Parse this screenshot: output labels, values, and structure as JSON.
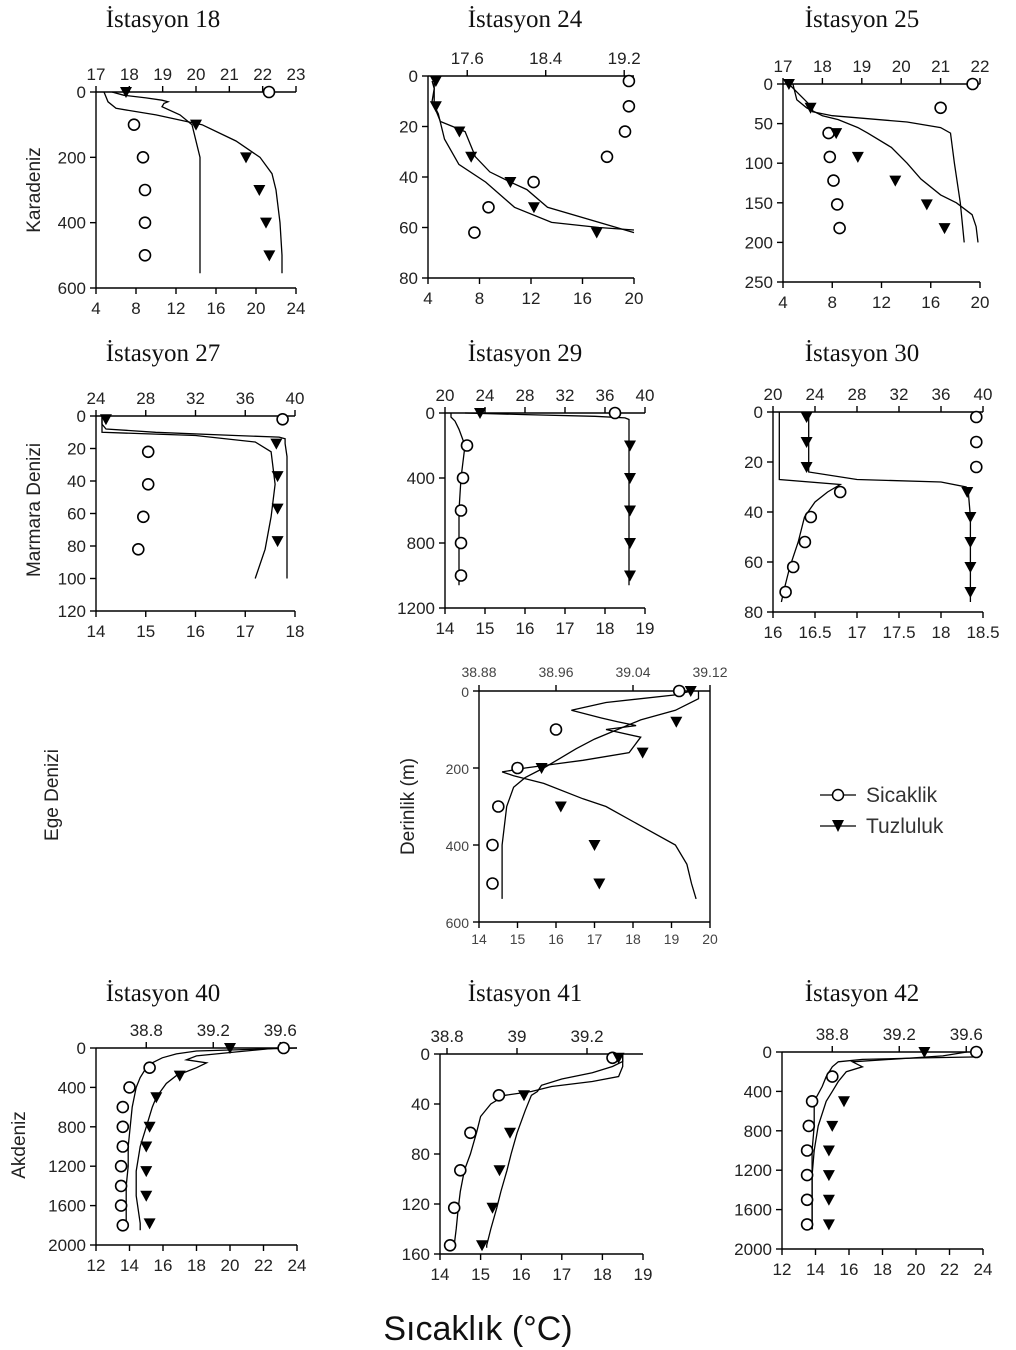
{
  "figure": {
    "row_labels": [
      "Karadeniz",
      "Marmara Denizi",
      "Ege Denizi",
      "Akdeniz"
    ],
    "x_axis_title": "Sıcaklık (°C)",
    "legend": {
      "temperature": "Sicaklik",
      "salinity": "Tuzluluk"
    },
    "colors": {
      "line": "#000000",
      "background": "#ffffff"
    }
  },
  "chart_data": [
    {
      "type": "line",
      "title": "İstasyon 18",
      "row_label": "Karadeniz",
      "xlim_bottom": [
        4,
        24
      ],
      "xticks_bottom": [
        "4",
        "8",
        "12",
        "16",
        "20",
        "24"
      ],
      "xlim_top": [
        17,
        23
      ],
      "xticks_top": [
        "17",
        "18",
        "19",
        "20",
        "21",
        "22",
        "23"
      ],
      "ylim": [
        0,
        600
      ],
      "yticks": [
        "0",
        "200",
        "400",
        "600"
      ],
      "series": [
        {
          "name": "Sicaklik",
          "depth": [
            0,
            100,
            200,
            300,
            400,
            500
          ],
          "values": [
            21.3,
            7.8,
            8.7,
            8.9,
            8.9,
            8.9
          ]
        },
        {
          "name": "Tuzluluk",
          "depth": [
            0,
            100,
            200,
            300,
            400,
            500
          ],
          "values": [
            17.9,
            20.0,
            21.5,
            21.9,
            22.1,
            22.2
          ]
        }
      ]
    },
    {
      "type": "line",
      "title": "İstasyon 24",
      "xlim_bottom": [
        4,
        20
      ],
      "xticks_bottom": [
        "4",
        "8",
        "12",
        "16",
        "20"
      ],
      "xlim_top": [
        17.2,
        19.3
      ],
      "xticks_top": [
        "17.6",
        "18.4",
        "19.2"
      ],
      "ylim": [
        0,
        80
      ],
      "yticks": [
        "0",
        "20",
        "40",
        "60",
        "80"
      ],
      "series": [
        {
          "name": "Sicaklik",
          "depth": [
            2,
            12,
            22,
            32,
            42,
            52,
            62
          ],
          "values": [
            19.6,
            19.6,
            19.3,
            17.9,
            12.2,
            8.7,
            7.6
          ]
        },
        {
          "name": "Tuzluluk",
          "depth": [
            2,
            12,
            22,
            32,
            42,
            52,
            62
          ],
          "values": [
            17.28,
            17.28,
            17.52,
            17.64,
            18.04,
            18.28,
            18.92
          ]
        }
      ]
    },
    {
      "type": "line",
      "title": "İstasyon 25",
      "xlim_bottom": [
        4,
        20
      ],
      "xticks_bottom": [
        "4",
        "8",
        "12",
        "16",
        "20"
      ],
      "xlim_top": [
        17,
        22
      ],
      "xticks_top": [
        "17",
        "18",
        "19",
        "20",
        "21",
        "22"
      ],
      "ylim": [
        0,
        250
      ],
      "yticks": [
        "0",
        "50",
        "100",
        "150",
        "200",
        "250"
      ],
      "series": [
        {
          "name": "Sicaklik",
          "depth": [
            0,
            30,
            62,
            92,
            122,
            152,
            182
          ],
          "values": [
            19.4,
            16.8,
            7.7,
            7.8,
            8.1,
            8.4,
            8.6
          ]
        },
        {
          "name": "Tuzluluk",
          "depth": [
            0,
            30,
            62,
            92,
            122,
            152,
            182
          ],
          "values": [
            17.15,
            17.7,
            18.35,
            18.9,
            19.85,
            20.65,
            21.1
          ]
        }
      ]
    },
    {
      "type": "line",
      "title": "İstasyon 27",
      "row_label": "Marmara Denizi",
      "xlim_bottom": [
        14,
        18
      ],
      "xticks_bottom": [
        "14",
        "15",
        "16",
        "17",
        "18"
      ],
      "xlim_top": [
        24,
        40
      ],
      "xticks_top": [
        "24",
        "28",
        "32",
        "36",
        "40"
      ],
      "ylim": [
        0,
        120
      ],
      "yticks": [
        "0",
        "20",
        "40",
        "60",
        "80",
        "100",
        "120"
      ],
      "series": [
        {
          "name": "Sicaklik",
          "depth": [
            2,
            22,
            42,
            62,
            82
          ],
          "values": [
            17.75,
            15.05,
            15.05,
            14.95,
            14.85
          ]
        },
        {
          "name": "Tuzluluk",
          "depth": [
            2,
            17,
            37,
            57,
            77
          ],
          "values": [
            24.8,
            38.5,
            38.6,
            38.6,
            38.6
          ]
        }
      ]
    },
    {
      "type": "line",
      "title": "İstasyon 29",
      "xlim_bottom": [
        14,
        19
      ],
      "xticks_bottom": [
        "14",
        "15",
        "16",
        "17",
        "18",
        "19"
      ],
      "xlim_top": [
        20,
        40
      ],
      "xticks_top": [
        "20",
        "24",
        "28",
        "32",
        "36",
        "40"
      ],
      "ylim": [
        0,
        1200
      ],
      "yticks": [
        "0",
        "400",
        "800",
        "1200"
      ],
      "series": [
        {
          "name": "Sicaklik",
          "depth": [
            0,
            200,
            400,
            600,
            800,
            1000
          ],
          "values": [
            18.25,
            14.55,
            14.45,
            14.4,
            14.4,
            14.4
          ]
        },
        {
          "name": "Tuzluluk",
          "depth": [
            0,
            200,
            400,
            600,
            800,
            1000
          ],
          "values": [
            23.5,
            38.5,
            38.5,
            38.5,
            38.5,
            38.5
          ]
        }
      ]
    },
    {
      "type": "line",
      "title": "İstasyon 30",
      "xlim_bottom": [
        16,
        18.5
      ],
      "xticks_bottom": [
        "16",
        "16.5",
        "17",
        "17.5",
        "18",
        "18.5"
      ],
      "xlim_top": [
        20,
        40
      ],
      "xticks_top": [
        "20",
        "24",
        "28",
        "32",
        "36",
        "40"
      ],
      "ylim": [
        0,
        80
      ],
      "yticks": [
        "0",
        "20",
        "40",
        "60",
        "80"
      ],
      "series": [
        {
          "name": "Sicaklik",
          "depth": [
            2,
            12,
            22,
            32,
            42,
            52,
            62,
            72
          ],
          "values": [
            18.42,
            18.42,
            18.42,
            16.8,
            16.45,
            16.38,
            16.24,
            16.15
          ]
        },
        {
          "name": "Tuzluluk",
          "depth": [
            2,
            12,
            22,
            32,
            42,
            52,
            62,
            72
          ],
          "values": [
            23.2,
            23.2,
            23.2,
            38.5,
            38.8,
            38.8,
            38.8,
            38.8
          ]
        }
      ]
    },
    {
      "type": "line",
      "title": "",
      "row_label": "Ege Denizi",
      "ylabel": "Derinlik (m)",
      "xlim_bottom": [
        14,
        20
      ],
      "xticks_bottom": [
        "14",
        "15",
        "16",
        "17",
        "18",
        "19",
        "20"
      ],
      "xlim_top": [
        38.88,
        39.12
      ],
      "xticks_top": [
        "38.88",
        "38.96",
        "39.04",
        "39.12"
      ],
      "ylim": [
        0,
        600
      ],
      "yticks": [
        "0",
        "200",
        "400",
        "600"
      ],
      "series": [
        {
          "name": "Sicaklik",
          "depth": [
            0,
            100,
            200,
            300,
            400,
            500
          ],
          "values": [
            19.2,
            16.0,
            15.0,
            14.5,
            14.35,
            14.35
          ]
        },
        {
          "name": "Tuzluluk",
          "depth": [
            0,
            80,
            160,
            200,
            300,
            400,
            500
          ],
          "values": [
            39.1,
            39.085,
            39.05,
            38.945,
            38.965,
            39.0,
            39.005
          ]
        }
      ]
    },
    {
      "type": "line",
      "title": "İstasyon 40",
      "row_label": "Akdeniz",
      "xlim_bottom": [
        12,
        24
      ],
      "xticks_bottom": [
        "12",
        "14",
        "16",
        "18",
        "20",
        "22",
        "24"
      ],
      "xlim_top": [
        38.5,
        39.7
      ],
      "xticks_top": [
        "38.8",
        "39.2",
        "39.6"
      ],
      "ylim": [
        0,
        2000
      ],
      "yticks": [
        "0",
        "400",
        "800",
        "1200",
        "1600",
        "2000"
      ],
      "series": [
        {
          "name": "Sicaklik",
          "depth": [
            0,
            200,
            400,
            600,
            800,
            1000,
            1200,
            1400,
            1600,
            1800
          ],
          "values": [
            23.2,
            15.2,
            14.0,
            13.6,
            13.6,
            13.6,
            13.5,
            13.5,
            13.5,
            13.6
          ]
        },
        {
          "name": "Tuzluluk",
          "depth": [
            0,
            280,
            500,
            800,
            1000,
            1250,
            1500,
            1780
          ],
          "values": [
            39.3,
            39.0,
            38.86,
            38.82,
            38.8,
            38.8,
            38.8,
            38.82
          ]
        }
      ]
    },
    {
      "type": "line",
      "title": "İstasyon 41",
      "xlim_bottom": [
        14,
        19
      ],
      "xticks_bottom": [
        "14",
        "15",
        "16",
        "17",
        "18",
        "19"
      ],
      "xlim_top": [
        38.78,
        39.36
      ],
      "xticks_top": [
        "38.8",
        "39",
        "39.2"
      ],
      "ylim": [
        0,
        160
      ],
      "yticks": [
        "0",
        "40",
        "80",
        "120",
        "160"
      ],
      "series": [
        {
          "name": "Sicaklik",
          "depth": [
            3,
            33,
            63,
            93,
            123,
            153
          ],
          "values": [
            18.25,
            15.45,
            14.75,
            14.5,
            14.35,
            14.25
          ]
        },
        {
          "name": "Tuzluluk",
          "depth": [
            3,
            33,
            63,
            93,
            123,
            153
          ],
          "values": [
            39.29,
            39.02,
            38.98,
            38.95,
            38.93,
            38.9
          ]
        }
      ]
    },
    {
      "type": "line",
      "title": "İstasyon 42",
      "xlim_bottom": [
        12,
        24
      ],
      "xticks_bottom": [
        "12",
        "14",
        "16",
        "18",
        "20",
        "22",
        "24"
      ],
      "xlim_top": [
        38.5,
        39.7
      ],
      "xticks_top": [
        "38.8",
        "39.2",
        "39.6"
      ],
      "ylim": [
        0,
        2000
      ],
      "yticks": [
        "0",
        "400",
        "800",
        "1200",
        "1600",
        "2000"
      ],
      "series": [
        {
          "name": "Sicaklik",
          "depth": [
            0,
            250,
            500,
            750,
            1000,
            1250,
            1500,
            1750
          ],
          "values": [
            23.6,
            15.0,
            13.8,
            13.6,
            13.5,
            13.5,
            13.5,
            13.5
          ]
        },
        {
          "name": "Tuzluluk",
          "depth": [
            0,
            500,
            750,
            1000,
            1250,
            1500,
            1750
          ],
          "values": [
            39.35,
            38.87,
            38.8,
            38.78,
            38.78,
            38.78,
            38.78
          ]
        }
      ]
    }
  ]
}
